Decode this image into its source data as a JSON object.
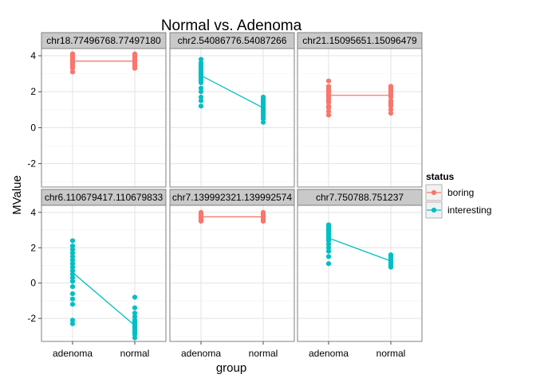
{
  "chart_data": {
    "type": "scatter",
    "title": "Normal vs. Adenoma",
    "xlabel": "group",
    "ylabel": "MValue",
    "categories": [
      "adenoma",
      "normal"
    ],
    "ylim": [
      -3.3,
      4.4
    ],
    "yticks": [
      -2,
      0,
      2,
      4
    ],
    "grid": true,
    "legend": {
      "title": "status",
      "position": "right",
      "entries": [
        {
          "name": "boring",
          "color": "#F8766D"
        },
        {
          "name": "interesting",
          "color": "#00BFC4"
        }
      ]
    },
    "facets": [
      {
        "label": "chr18.77496768.77497180",
        "status": "boring",
        "means": [
          3.7,
          3.7
        ],
        "points": {
          "adenoma": [
            3.1,
            3.3,
            3.4,
            3.5,
            3.5,
            3.6,
            3.6,
            3.7,
            3.7,
            3.7,
            3.8,
            3.8,
            3.8,
            3.9,
            3.9,
            4.0,
            4.0,
            4.0,
            4.1,
            4.1
          ],
          "normal": [
            3.3,
            3.4,
            3.5,
            3.5,
            3.6,
            3.6,
            3.7,
            3.7,
            3.7,
            3.8,
            3.8,
            3.8,
            3.9,
            3.9,
            4.0,
            4.0,
            4.1
          ]
        }
      },
      {
        "label": "chr2.54086776.54087266",
        "status": "interesting",
        "means": [
          2.9,
          1.1
        ],
        "points": {
          "adenoma": [
            1.2,
            1.5,
            1.7,
            2.0,
            2.2,
            2.5,
            2.6,
            2.7,
            2.8,
            2.9,
            3.0,
            3.0,
            3.1,
            3.2,
            3.3,
            3.4,
            3.5,
            3.6,
            3.8
          ],
          "normal": [
            0.3,
            0.5,
            0.6,
            0.7,
            0.8,
            0.9,
            1.0,
            1.1,
            1.2,
            1.3,
            1.4,
            1.5,
            1.6,
            1.7
          ]
        }
      },
      {
        "label": "chr21.15095651.15096479",
        "status": "boring",
        "means": [
          1.8,
          1.8
        ],
        "points": {
          "adenoma": [
            0.7,
            0.9,
            1.1,
            1.2,
            1.4,
            1.5,
            1.6,
            1.7,
            1.8,
            1.9,
            2.0,
            2.1,
            2.2,
            2.3,
            2.6
          ],
          "normal": [
            0.8,
            1.0,
            1.2,
            1.3,
            1.4,
            1.5,
            1.7,
            1.8,
            1.9,
            2.0,
            2.1,
            2.2,
            2.3
          ]
        }
      },
      {
        "label": "chr6.110679417.110679833",
        "status": "interesting",
        "means": [
          0.6,
          -2.4
        ],
        "points": {
          "adenoma": [
            -2.3,
            -2.1,
            -1.2,
            -0.9,
            -0.6,
            -0.2,
            0.1,
            0.3,
            0.5,
            0.7,
            0.9,
            1.1,
            1.3,
            1.5,
            1.7,
            1.9,
            2.1,
            2.4
          ],
          "normal": [
            -3.1,
            -2.9,
            -2.8,
            -2.7,
            -2.6,
            -2.5,
            -2.4,
            -2.3,
            -2.2,
            -2.1,
            -1.9,
            -1.7,
            -1.4,
            -0.8
          ]
        }
      },
      {
        "label": "chr7.139992321.139992574",
        "status": "boring",
        "means": [
          3.75,
          3.75
        ],
        "points": {
          "adenoma": [
            3.5,
            3.6,
            3.6,
            3.7,
            3.7,
            3.8,
            3.8,
            3.9,
            3.9,
            4.0
          ],
          "normal": [
            3.5,
            3.6,
            3.6,
            3.7,
            3.7,
            3.8,
            3.8,
            3.9,
            3.9,
            4.0
          ]
        }
      },
      {
        "label": "chr7.750788.751237",
        "status": "interesting",
        "means": [
          2.55,
          1.25
        ],
        "points": {
          "adenoma": [
            1.1,
            1.5,
            1.8,
            2.0,
            2.2,
            2.4,
            2.5,
            2.6,
            2.7,
            2.8,
            2.9,
            3.0,
            3.1,
            3.2,
            3.3
          ],
          "normal": [
            0.9,
            1.0,
            1.1,
            1.2,
            1.3,
            1.4,
            1.5,
            1.6
          ]
        }
      }
    ]
  }
}
